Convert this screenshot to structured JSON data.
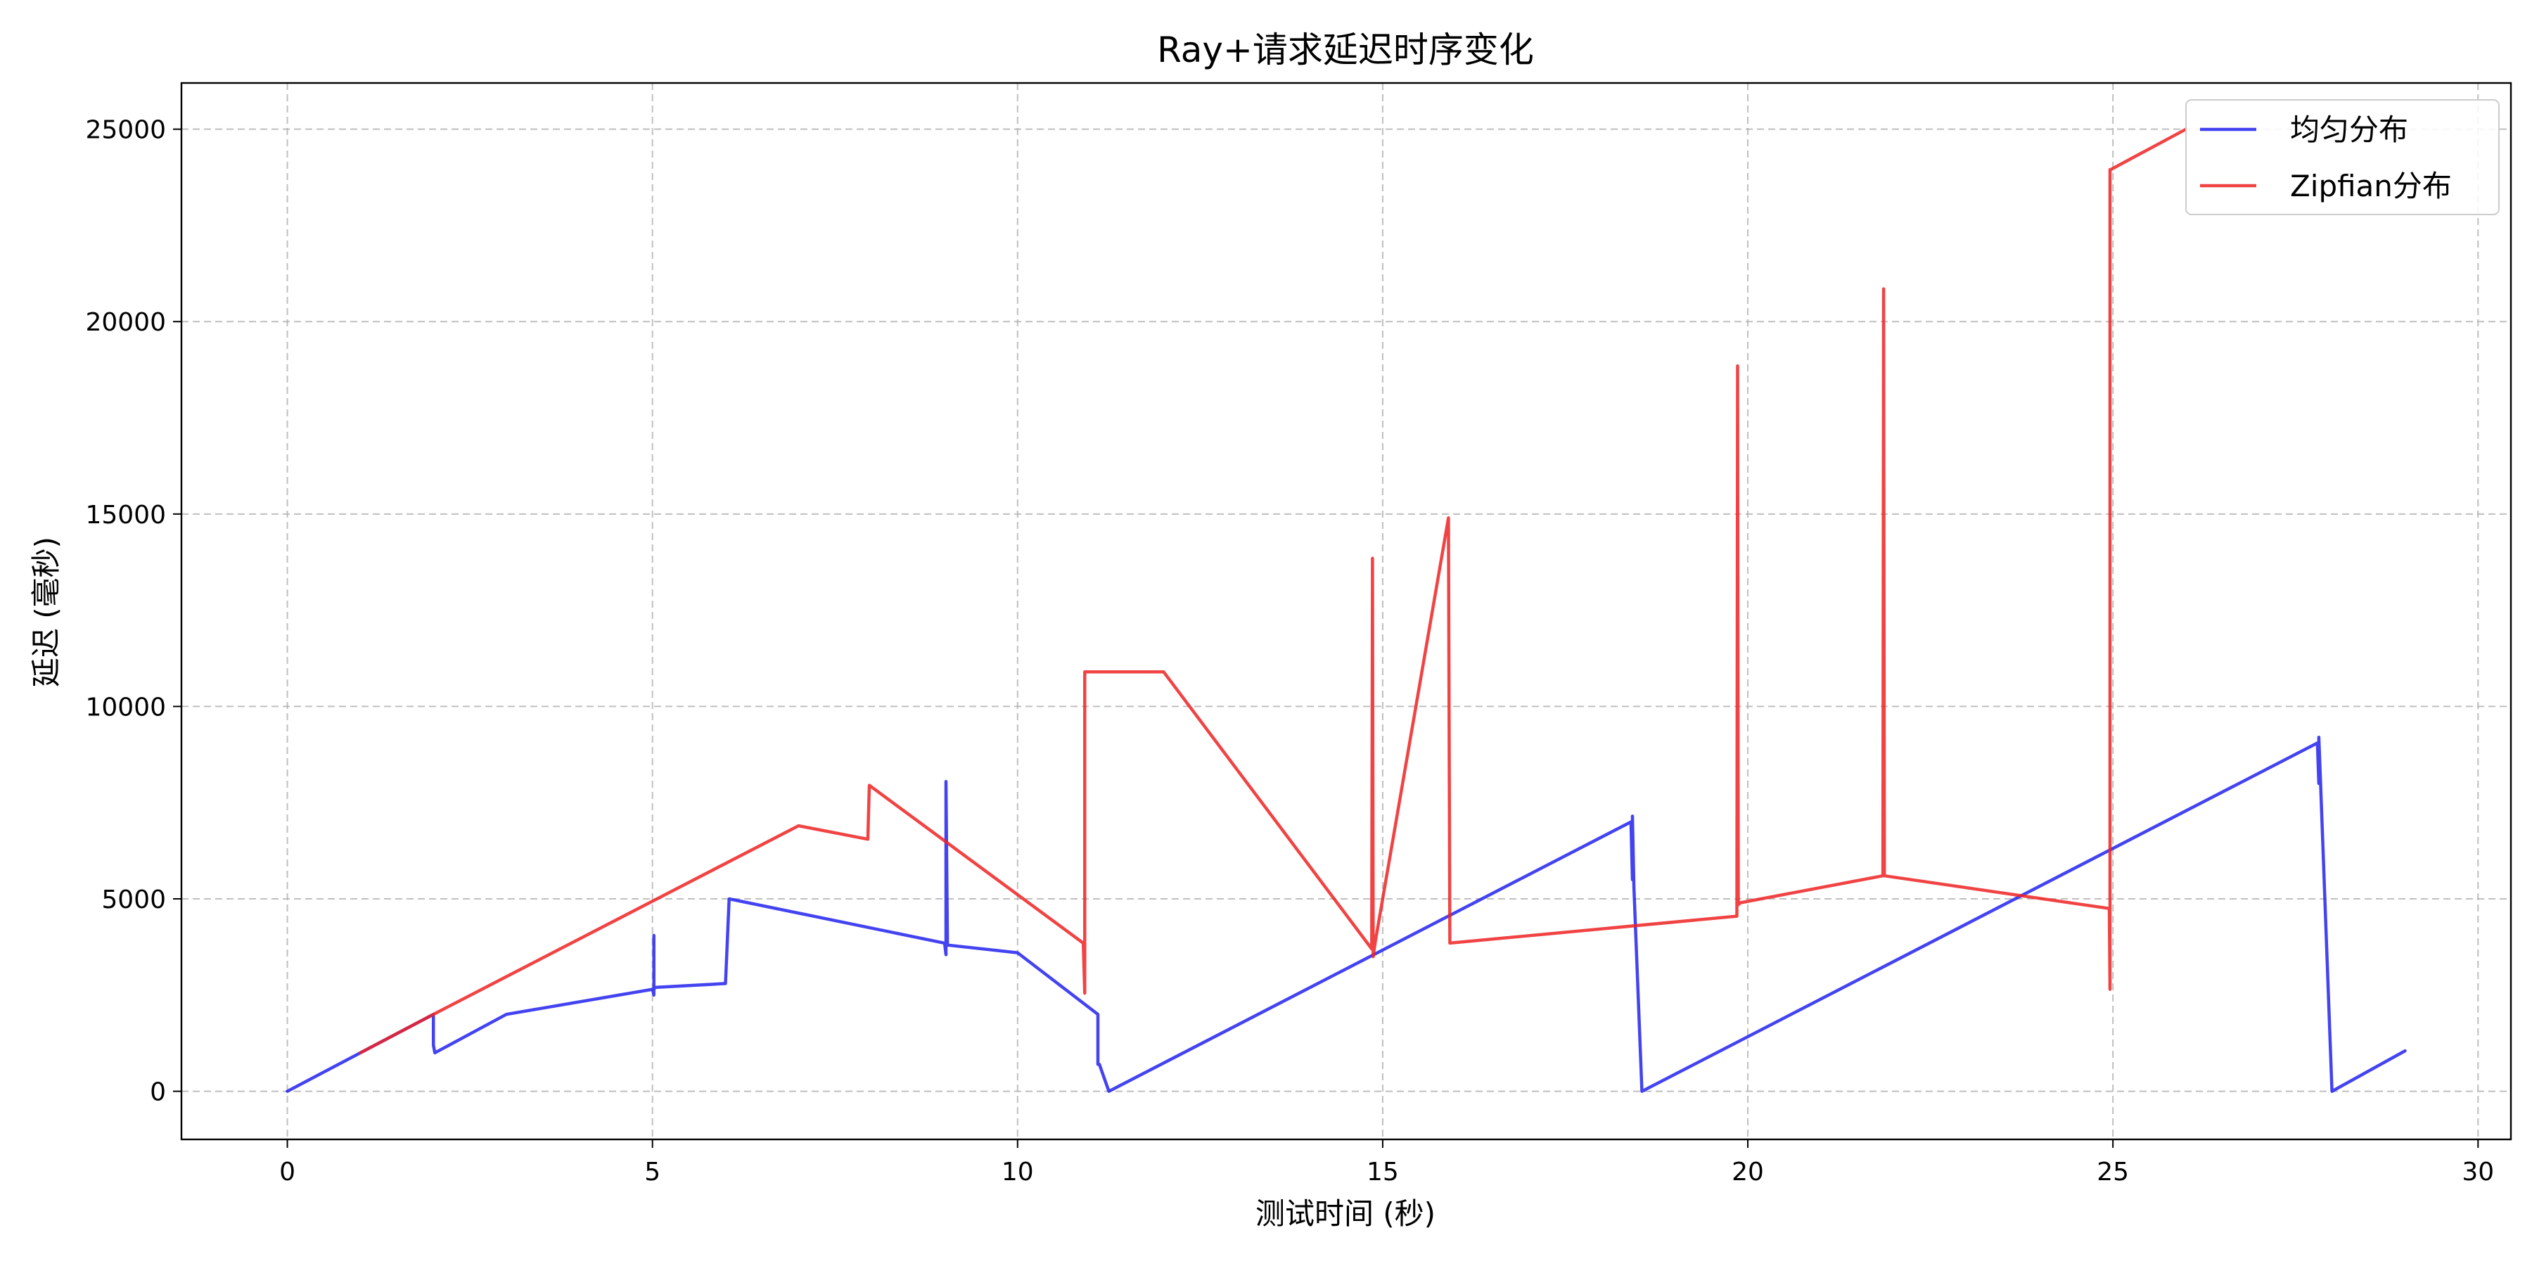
{
  "chart_data": {
    "type": "line",
    "title": "Ray+请求延迟时序变化",
    "xlabel": "测试时间 (秒)",
    "ylabel": "延迟 (毫秒)",
    "xlim": [
      -1.45,
      30.45
    ],
    "ylim": [
      -1250,
      26200
    ],
    "xticks": [
      0,
      5,
      10,
      15,
      20,
      25,
      30
    ],
    "yticks": [
      0,
      5000,
      10000,
      15000,
      20000,
      25000
    ],
    "grid": true,
    "legend_position": "top-right",
    "series": [
      {
        "name": "均匀分布",
        "color": "#2222ee",
        "x": [
          0,
          2.0,
          2.0,
          2.02,
          3.0,
          5.0,
          5.02,
          5.02,
          5.02,
          5.04,
          6.0,
          6.05,
          9.0,
          9.02,
          9.02,
          9.04,
          10.0,
          11.1,
          11.1,
          11.12,
          11.25,
          18.4,
          18.42,
          18.42,
          18.44,
          18.55,
          27.8,
          27.82,
          27.82,
          27.84,
          28.0,
          29.0
        ],
        "y": [
          0,
          2000,
          1200,
          1000,
          2000,
          2650,
          2500,
          4050,
          2650,
          2700,
          2800,
          5000,
          3850,
          3550,
          8050,
          3800,
          3600,
          2000,
          700,
          700,
          0,
          7000,
          5500,
          7150,
          5300,
          0,
          9050,
          8000,
          9200,
          8200,
          0,
          1050
        ]
      },
      {
        "name": "Zipfian分布",
        "color": "#ee2222",
        "x": [
          1.0,
          2.0,
          7.0,
          7.95,
          7.97,
          10.9,
          10.92,
          10.92,
          12.0,
          14.85,
          14.86,
          14.87,
          14.9,
          15.9,
          15.92,
          19.85,
          19.86,
          19.87,
          19.9,
          21.85,
          21.86,
          21.87,
          24.95,
          24.96,
          24.96,
          24.97,
          26.0
        ],
        "y": [
          1000,
          2000,
          6900,
          6550,
          7950,
          3850,
          2550,
          10900,
          10900,
          3700,
          13850,
          3500,
          3900,
          14900,
          3850,
          4550,
          18850,
          4850,
          4900,
          5600,
          20850,
          5600,
          4750,
          2650,
          23950,
          23950,
          25000
        ]
      }
    ]
  }
}
